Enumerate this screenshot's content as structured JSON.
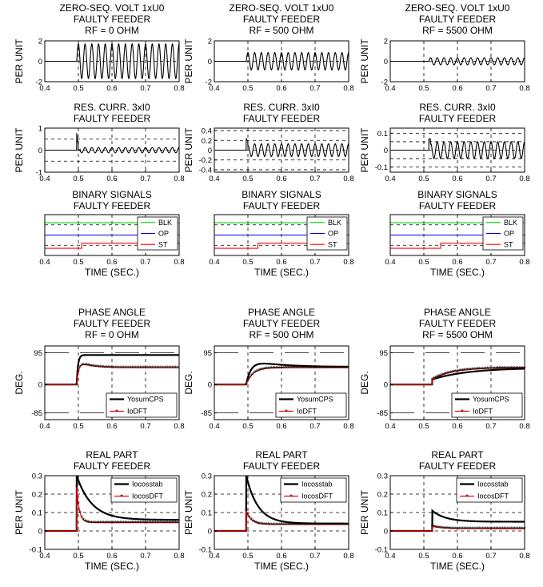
{
  "colors": {
    "black": "#000000",
    "red": "#ff0000",
    "green": "#00cc00",
    "blue": "#0000ff",
    "grid": "#000000"
  },
  "chart_data": [
    {
      "id": "zsv-0",
      "type": "line",
      "title": [
        "ZERO-SEQ. VOLT 1xU0",
        "FAULTY FEEDER",
        "RF = 0 OHM"
      ],
      "xlabel": "",
      "ylabel": "PER UNIT",
      "xlim": [
        0.4,
        0.8
      ],
      "ylim": [
        -2,
        2
      ],
      "xticks": [
        "0.4",
        "0.5",
        "0.6",
        "0.7",
        "0.8"
      ],
      "yticks": [
        "-2",
        "0",
        "2"
      ],
      "grid": "dashed",
      "legend_placement": "none",
      "series": [
        {
          "signal": "zero-sequence voltage",
          "wave": "sine",
          "color": "black",
          "onset": 0.495,
          "amplitude": 1.7,
          "cycles_per_s": 50,
          "pre_value": 0
        }
      ]
    },
    {
      "id": "zsv-500",
      "type": "line",
      "title": [
        "ZERO-SEQ. VOLT 1xU0",
        "FAULTY FEEDER",
        "RF = 500 OHM"
      ],
      "xlabel": "",
      "ylabel": "PER UNIT",
      "xlim": [
        0.4,
        0.8
      ],
      "ylim": [
        -2,
        2
      ],
      "xticks": [
        "0.4",
        "0.5",
        "0.6",
        "0.7",
        "0.8"
      ],
      "yticks": [
        "-2",
        "0",
        "2"
      ],
      "grid": "dashed",
      "legend_placement": "none",
      "series": [
        {
          "signal": "zero-sequence voltage",
          "wave": "sine",
          "color": "black",
          "onset": 0.495,
          "amplitude": 0.85,
          "cycles_per_s": 50,
          "pre_value": 0
        }
      ]
    },
    {
      "id": "zsv-5500",
      "type": "line",
      "title": [
        "ZERO-SEQ. VOLT 1xU0",
        "FAULTY FEEDER",
        "RF = 5500 OHM"
      ],
      "xlabel": "",
      "ylabel": "PER UNIT",
      "xlim": [
        0.4,
        0.8
      ],
      "ylim": [
        -2,
        2
      ],
      "xticks": [
        "0.4",
        "0.5",
        "0.6",
        "0.7",
        "0.8"
      ],
      "yticks": [
        "-2",
        "0",
        "2"
      ],
      "grid": "dashed",
      "legend_placement": "none",
      "series": [
        {
          "signal": "zero-sequence voltage",
          "wave": "sine",
          "color": "black",
          "onset": 0.515,
          "amplitude": 0.35,
          "cycles_per_s": 50,
          "pre_value": 0
        }
      ]
    },
    {
      "id": "res-0",
      "type": "line",
      "title": [
        "RES. CURR. 3xI0",
        "FAULTY FEEDER"
      ],
      "xlabel": "",
      "ylabel": "PER UNIT",
      "xlim": [
        0.4,
        0.8
      ],
      "ylim": [
        -1,
        1
      ],
      "xticks": [
        "0.4",
        "0.5",
        "0.6",
        "0.7",
        "0.8"
      ],
      "yticks": [
        "-1",
        "0",
        "1"
      ],
      "ygrid": [
        -0.5,
        0,
        0.5
      ],
      "grid": "dashed",
      "legend_placement": "none",
      "series": [
        {
          "signal": "residual current",
          "wave": "sine",
          "color": "black",
          "onset": 0.495,
          "amplitude": 0.12,
          "spike": 0.8,
          "cycles_per_s": 50,
          "pre_value": 0
        }
      ]
    },
    {
      "id": "res-500",
      "type": "line",
      "title": [
        "RES. CURR. 3xI0",
        "FAULTY FEEDER"
      ],
      "xlabel": "",
      "ylabel": "PER UNIT",
      "xlim": [
        0.4,
        0.8
      ],
      "ylim": [
        -0.45,
        0.45
      ],
      "xticks": [
        "0.4",
        "0.5",
        "0.6",
        "0.7",
        "0.8"
      ],
      "yticks": [
        "-0.4",
        "-0.2",
        "0",
        "0.2",
        "0.4"
      ],
      "ygrid": [
        -0.4,
        -0.2,
        0,
        0.2,
        0.4
      ],
      "grid": "dashed",
      "legend_placement": "none",
      "series": [
        {
          "signal": "residual current",
          "wave": "sine",
          "color": "black",
          "onset": 0.495,
          "amplitude": 0.13,
          "spike": 0.25,
          "cycles_per_s": 50,
          "pre_value": 0
        }
      ]
    },
    {
      "id": "res-5500",
      "type": "line",
      "title": [
        "RES. CURR. 3xI0",
        "FAULTY FEEDER"
      ],
      "xlabel": "",
      "ylabel": "PER UNIT",
      "xlim": [
        0.4,
        0.8
      ],
      "ylim": [
        -0.13,
        0.13
      ],
      "xticks": [
        "0.4",
        "0.5",
        "0.6",
        "0.7",
        "0.8"
      ],
      "yticks": [
        "-0.1",
        "0",
        "0.1"
      ],
      "ygrid": [
        -0.1,
        -0.05,
        0,
        0.05,
        0.1
      ],
      "grid": "dashed",
      "legend_placement": "none",
      "series": [
        {
          "signal": "residual current",
          "wave": "sine",
          "color": "black",
          "onset": 0.515,
          "amplitude": 0.05,
          "spike": 0.07,
          "cycles_per_s": 50,
          "pre_value": 0
        }
      ]
    },
    {
      "id": "bin-0",
      "type": "line",
      "title": [
        "BINARY SIGNALS",
        "FAULTY FEEDER"
      ],
      "xlabel": "TIME (SEC.)",
      "ylabel": "",
      "xlim": [
        0.4,
        0.8
      ],
      "ylim": [
        0,
        4
      ],
      "xticks": [
        "0.4",
        "0.5",
        "0.6",
        "0.7",
        "0.8"
      ],
      "yticks": [],
      "grid": "dashed",
      "legend_placement": "right",
      "series": [
        {
          "name": "BLK",
          "color": "green",
          "step": false,
          "level": 3.2
        },
        {
          "name": "OP",
          "color": "blue",
          "step": false,
          "level": 2.0
        },
        {
          "name": "ST",
          "color": "red",
          "step": true,
          "low": 0.7,
          "high": 1.2,
          "step_at": 0.51
        }
      ]
    },
    {
      "id": "bin-500",
      "type": "line",
      "title": [
        "BINARY SIGNALS",
        "FAULTY FEEDER"
      ],
      "xlabel": "TIME (SEC.)",
      "ylabel": "",
      "xlim": [
        0.4,
        0.8
      ],
      "ylim": [
        0,
        4
      ],
      "xticks": [
        "0.4",
        "0.5",
        "0.6",
        "0.7",
        "0.8"
      ],
      "yticks": [],
      "grid": "dashed",
      "legend_placement": "right",
      "series": [
        {
          "name": "BLK",
          "color": "green",
          "step": false,
          "level": 3.2
        },
        {
          "name": "OP",
          "color": "blue",
          "step": false,
          "level": 2.0
        },
        {
          "name": "ST",
          "color": "red",
          "step": true,
          "low": 0.7,
          "high": 1.2,
          "step_at": 0.53
        }
      ]
    },
    {
      "id": "bin-5500",
      "type": "line",
      "title": [
        "BINARY SIGNALS",
        "FAULTY FEEDER"
      ],
      "xlabel": "TIME (SEC.)",
      "ylabel": "",
      "xlim": [
        0.4,
        0.8
      ],
      "ylim": [
        0,
        4
      ],
      "xticks": [
        "0.4",
        "0.5",
        "0.6",
        "0.7",
        "0.8"
      ],
      "yticks": [],
      "grid": "dashed",
      "legend_placement": "right",
      "series": [
        {
          "name": "BLK",
          "color": "green",
          "step": false,
          "level": 3.2
        },
        {
          "name": "OP",
          "color": "blue",
          "step": false,
          "level": 2.0
        },
        {
          "name": "ST",
          "color": "red",
          "step": true,
          "low": 0.7,
          "high": 1.2,
          "step_at": 0.55
        }
      ]
    },
    {
      "id": "ang-0",
      "type": "line",
      "title": [
        "PHASE ANGLE",
        "FAULTY FEEDER",
        "RF = 0 OHM"
      ],
      "xlabel": "",
      "ylabel": "DEG.",
      "xlim": [
        0.4,
        0.8
      ],
      "ylim": [
        -105,
        115
      ],
      "xticks": [
        "0.4",
        "0.5",
        "0.6",
        "0.7",
        "0.8"
      ],
      "yticks": [
        "-85",
        "0",
        "95"
      ],
      "hlines": [
        -85,
        95
      ],
      "grid": "dashed",
      "legend_placement": "bottom-right",
      "series": [
        {
          "name": "YosumCPS",
          "color": "black",
          "onset": 0.495,
          "pre_value": 0,
          "final": 88,
          "tau": 0.004,
          "overshoot": 0
        },
        {
          "name": "IoDFT",
          "color": "red",
          "marker": "star",
          "onset": 0.495,
          "pre_value": 0,
          "final": 50,
          "tau": 0.006,
          "overshoot": 20
        }
      ]
    },
    {
      "id": "ang-500",
      "type": "line",
      "title": [
        "PHASE ANGLE",
        "FAULTY FEEDER",
        "RF = 500 OHM"
      ],
      "xlabel": "",
      "ylabel": "DEG.",
      "xlim": [
        0.4,
        0.8
      ],
      "ylim": [
        -105,
        115
      ],
      "xticks": [
        "0.4",
        "0.5",
        "0.6",
        "0.7",
        "0.8"
      ],
      "yticks": [
        "-85",
        "0",
        "95"
      ],
      "hlines": [
        -85,
        95
      ],
      "grid": "dashed",
      "legend_placement": "bottom-right",
      "series": [
        {
          "name": "YosumCPS",
          "color": "black",
          "onset": 0.495,
          "pre_value": 0,
          "final": 52,
          "tau": 0.015,
          "overshoot": 22
        },
        {
          "name": "IoDFT",
          "color": "red",
          "marker": "star",
          "onset": 0.495,
          "pre_value": 0,
          "final": 50,
          "tau": 0.02,
          "overshoot": 0
        }
      ]
    },
    {
      "id": "ang-5500",
      "type": "line",
      "title": [
        "PHASE ANGLE",
        "FAULTY FEEDER",
        "RF = 5500 OHM"
      ],
      "xlabel": "",
      "ylabel": "DEG.",
      "xlim": [
        0.4,
        0.8
      ],
      "ylim": [
        -105,
        115
      ],
      "xticks": [
        "0.4",
        "0.5",
        "0.6",
        "0.7",
        "0.8"
      ],
      "yticks": [
        "-85",
        "0",
        "95"
      ],
      "hlines": [
        -85,
        95
      ],
      "grid": "dashed",
      "legend_placement": "bottom-right",
      "series": [
        {
          "name": "YosumCPS",
          "color": "black",
          "onset": 0.525,
          "pre_value": 0,
          "jump": 15,
          "final": 50,
          "tau": 0.11,
          "overshoot": 0
        },
        {
          "name": "IoDFT",
          "color": "red",
          "marker": "star",
          "onset": 0.525,
          "pre_value": 0,
          "jump": 15,
          "final": 50,
          "tau": 0.06,
          "overshoot": 0
        }
      ]
    },
    {
      "id": "real-0",
      "type": "line",
      "title": [
        "REAL PART",
        "FAULTY FEEDER"
      ],
      "xlabel": "TIME (SEC.)",
      "ylabel": "PER UNIT",
      "xlim": [
        0.4,
        0.8
      ],
      "ylim": [
        -0.1,
        0.3
      ],
      "xticks": [
        "0.4",
        "0.5",
        "0.6",
        "0.7",
        "0.8"
      ],
      "yticks": [
        "-0.1",
        "0",
        "0.1",
        "0.2",
        "0.3"
      ],
      "grid": "dashed",
      "legend_placement": "top-right",
      "series": [
        {
          "name": "Iocosstab",
          "color": "black",
          "onset": 0.495,
          "pre_value": 0,
          "peak": 0.3,
          "final": 0.06,
          "tau": 0.045
        },
        {
          "name": "IocosDFT",
          "color": "red",
          "marker": "star",
          "onset": 0.495,
          "pre_value": 0,
          "peak": 0.24,
          "final": 0.045,
          "tau": 0.008
        }
      ]
    },
    {
      "id": "real-500",
      "type": "line",
      "title": [
        "REAL PART",
        "FAULTY FEEDER"
      ],
      "xlabel": "TIME (SEC.)",
      "ylabel": "PER UNIT",
      "xlim": [
        0.4,
        0.8
      ],
      "ylim": [
        -0.1,
        0.3
      ],
      "xticks": [
        "0.4",
        "0.5",
        "0.6",
        "0.7",
        "0.8"
      ],
      "yticks": [
        "-0.1",
        "0",
        "0.1",
        "0.2",
        "0.3"
      ],
      "grid": "dashed",
      "legend_placement": "top-right",
      "series": [
        {
          "name": "Iocosstab",
          "color": "black",
          "onset": 0.495,
          "pre_value": 0,
          "peak": 0.3,
          "final": 0.04,
          "tau": 0.035
        },
        {
          "name": "IocosDFT",
          "color": "red",
          "marker": "star",
          "onset": 0.495,
          "pre_value": 0,
          "peak": 0.11,
          "final": 0.035,
          "tau": 0.015
        }
      ]
    },
    {
      "id": "real-5500",
      "type": "line",
      "title": [
        "REAL PART",
        "FAULTY FEEDER"
      ],
      "xlabel": "TIME (SEC.)",
      "ylabel": "PER UNIT",
      "xlim": [
        0.4,
        0.8
      ],
      "ylim": [
        -0.1,
        0.3
      ],
      "xticks": [
        "0.4",
        "0.5",
        "0.6",
        "0.7",
        "0.8"
      ],
      "yticks": [
        "-0.1",
        "0",
        "0.1",
        "0.2",
        "0.3"
      ],
      "grid": "dashed",
      "legend_placement": "top-right",
      "series": [
        {
          "name": "Iocosstab",
          "color": "black",
          "onset": 0.525,
          "pre_value": 0,
          "peak": 0.11,
          "final": 0.05,
          "tau": 0.04
        },
        {
          "name": "IocosDFT",
          "color": "red",
          "marker": "star",
          "onset": 0.525,
          "pre_value": 0,
          "peak": 0.025,
          "final": 0.012,
          "tau": 0.03
        }
      ]
    }
  ]
}
